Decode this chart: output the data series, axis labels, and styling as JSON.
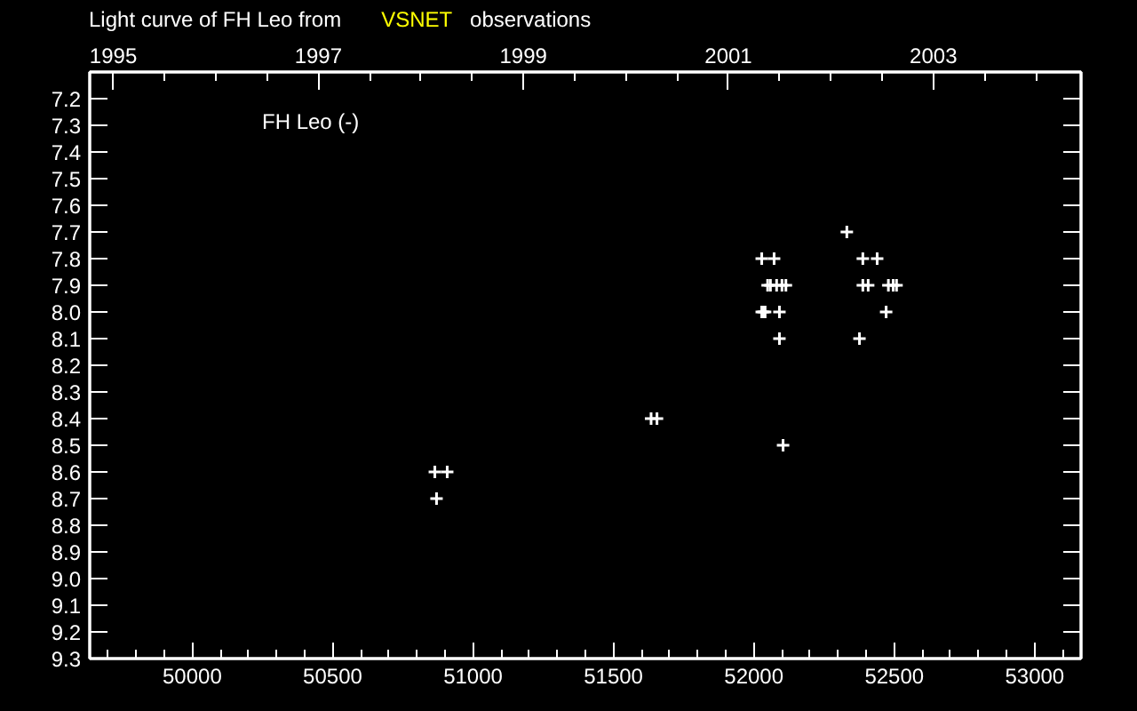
{
  "chart_data": {
    "type": "scatter",
    "title": "Light curve of FH Leo from VSNET observations",
    "annotations": [
      "FH Leo (-)"
    ],
    "marker": "cross",
    "series": [
      {
        "color": "#ffffff",
        "x": [
          50864,
          50870,
          50908,
          51634,
          51655,
          52028,
          52028,
          52034,
          52040,
          52049,
          52059,
          52072,
          52081,
          52091,
          52091,
          52100,
          52104,
          52114,
          52331,
          52376,
          52388,
          52388,
          52407,
          52439,
          52471,
          52479,
          52496,
          52508
        ],
        "values": [
          8.6,
          8.7,
          8.6,
          8.4,
          8.4,
          7.8,
          8.0,
          8.0,
          8.0,
          7.9,
          7.9,
          7.8,
          7.9,
          8.0,
          8.1,
          7.9,
          8.5,
          7.9,
          7.7,
          8.1,
          7.8,
          7.9,
          7.9,
          7.8,
          8.0,
          7.9,
          7.9,
          7.9
        ]
      }
    ],
    "xlim": [
      49635,
      53165
    ],
    "ylim": [
      9.3,
      7.1
    ],
    "xticks": [
      {
        "value": 49700,
        "label": null
      },
      {
        "value": 49800,
        "label": null
      },
      {
        "value": 49900,
        "label": null
      },
      50000,
      {
        "value": 50100,
        "label": null
      },
      {
        "value": 50200,
        "label": null
      },
      {
        "value": 50300,
        "label": null
      },
      {
        "value": 50400,
        "label": null
      },
      50500,
      {
        "value": 50600,
        "label": null
      },
      {
        "value": 50700,
        "label": null
      },
      {
        "value": 50800,
        "label": null
      },
      {
        "value": 50900,
        "label": null
      },
      51000,
      {
        "value": 51100,
        "label": null
      },
      {
        "value": 51200,
        "label": null
      },
      {
        "value": 51300,
        "label": null
      },
      {
        "value": 51400,
        "label": null
      },
      51500,
      {
        "value": 51600,
        "label": null
      },
      {
        "value": 51700,
        "label": null
      },
      {
        "value": 51800,
        "label": null
      },
      {
        "value": 51900,
        "label": null
      },
      52000,
      {
        "value": 52100,
        "label": null
      },
      {
        "value": 52200,
        "label": null
      },
      {
        "value": 52300,
        "label": null
      },
      {
        "value": 52400,
        "label": null
      },
      52500,
      {
        "value": 52600,
        "label": null
      },
      {
        "value": 52700,
        "label": null
      },
      {
        "value": 52800,
        "label": null
      },
      {
        "value": 52900,
        "label": null
      },
      53000,
      {
        "value": 53100,
        "label": null
      }
    ],
    "yticks": [
      7.2,
      7.3,
      7.4,
      7.5,
      7.6,
      7.7,
      7.8,
      7.9,
      {
        "value": 8,
        "label": "8.0"
      },
      8.1,
      8.2,
      8.3,
      8.4,
      8.5,
      8.6,
      8.7,
      8.8,
      8.9,
      {
        "value": 9,
        "label": "9.0"
      },
      9.1,
      9.2,
      9.3
    ],
    "x2lim": [
      1994.77,
      2004.44
    ],
    "x2ticks": [
      1995,
      {
        "value": 1995.5,
        "label": null
      },
      {
        "value": 1996,
        "label": null
      },
      {
        "value": 1996.5,
        "label": null
      },
      1997,
      {
        "value": 1997.5,
        "label": null
      },
      {
        "value": 1998,
        "label": null
      },
      {
        "value": 1998.5,
        "label": null
      },
      1999,
      {
        "value": 1999.5,
        "label": null
      },
      {
        "value": 2000,
        "label": null
      },
      {
        "value": 2000.5,
        "label": null
      },
      2001,
      {
        "value": 2001.5,
        "label": null
      },
      {
        "value": 2002,
        "label": null
      },
      {
        "value": 2002.5,
        "label": null
      },
      2003,
      {
        "value": 2003.5,
        "label": null
      },
      {
        "value": 2004,
        "label": null
      }
    ]
  }
}
